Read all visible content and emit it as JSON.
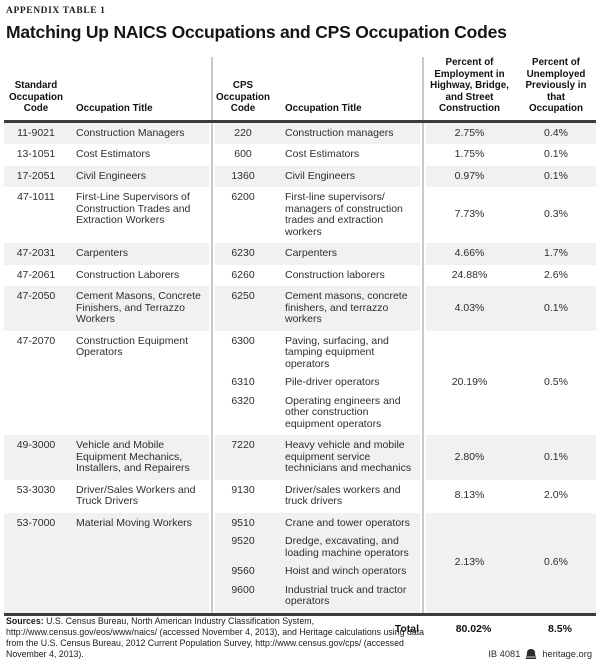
{
  "meta": {
    "kicker": "APPENDIX TABLE 1",
    "title": "Matching Up NAICS Occupations and CPS Occupation Codes"
  },
  "table": {
    "headers": [
      "Standard\nOccupation\nCode",
      "Occupation Title",
      "CPS\nOccupation\nCode",
      "Occupation Title",
      "Percent of\nEmployment in\nHighway, Bridge,\nand Street\nConstruction",
      "Percent of\nUnemployed\nPreviously in that\nOccupation"
    ],
    "rows": [
      {
        "soc": "11-9021",
        "title": "Construction Managers",
        "cps": [
          {
            "code": "220",
            "title": "Construction managers"
          }
        ],
        "emp": "2.75%",
        "unemp": "0.4%"
      },
      {
        "soc": "13-1051",
        "title": "Cost Estimators",
        "cps": [
          {
            "code": "600",
            "title": "Cost Estimators"
          }
        ],
        "emp": "1.75%",
        "unemp": "0.1%"
      },
      {
        "soc": "17-2051",
        "title": "Civil Engineers",
        "cps": [
          {
            "code": "1360",
            "title": "Civil Engineers"
          }
        ],
        "emp": "0.97%",
        "unemp": "0.1%"
      },
      {
        "soc": "47-1011",
        "title": "First-Line Supervisors of Construction Trades and Extraction Workers",
        "cps": [
          {
            "code": "6200",
            "title": "First-line supervisors/ managers of construction trades and extraction workers"
          }
        ],
        "emp": "7.73%",
        "unemp": "0.3%"
      },
      {
        "soc": "47-2031",
        "title": "Carpenters",
        "cps": [
          {
            "code": "6230",
            "title": "Carpenters"
          }
        ],
        "emp": "4.66%",
        "unemp": "1.7%"
      },
      {
        "soc": "47-2061",
        "title": "Construction Laborers",
        "cps": [
          {
            "code": "6260",
            "title": "Construction laborers"
          }
        ],
        "emp": "24.88%",
        "unemp": "2.6%"
      },
      {
        "soc": "47-2050",
        "title": "Cement Masons, Concrete Finishers, and Terrazzo Workers",
        "cps": [
          {
            "code": "6250",
            "title": "Cement masons, concrete finishers, and terrazzo workers"
          }
        ],
        "emp": "4.03%",
        "unemp": "0.1%"
      },
      {
        "soc": "47-2070",
        "title": "Construction Equipment Operators",
        "cps": [
          {
            "code": "6300",
            "title": "Paving, surfacing, and tamping equipment operators"
          },
          {
            "code": "6310",
            "title": "Pile-driver operators"
          },
          {
            "code": "6320",
            "title": "Operating engineers and other construction equipment operators"
          }
        ],
        "emp": "20.19%",
        "unemp": "0.5%"
      },
      {
        "soc": "49-3000",
        "title": "Vehicle and Mobile Equipment Mechanics, Installers, and Repairers",
        "cps": [
          {
            "code": "7220",
            "title": "Heavy vehicle and mobile equipment service technicians and mechanics"
          }
        ],
        "emp": "2.80%",
        "unemp": "0.1%"
      },
      {
        "soc": "53-3030",
        "title": "Driver/Sales Workers and Truck Drivers",
        "cps": [
          {
            "code": "9130",
            "title": "Driver/sales workers and truck drivers"
          }
        ],
        "emp": "8.13%",
        "unemp": "2.0%"
      },
      {
        "soc": "53-7000",
        "title": "Material Moving Workers",
        "cps": [
          {
            "code": "9510",
            "title": "Crane and tower operators"
          },
          {
            "code": "9520",
            "title": "Dredge, excavating, and loading machine operators"
          },
          {
            "code": "9560",
            "title": "Hoist and winch operators"
          },
          {
            "code": "9600",
            "title": "Industrial truck and tractor operators"
          }
        ],
        "emp": "2.13%",
        "unemp": "0.6%"
      }
    ],
    "total": {
      "label": "Total",
      "emp": "80.02%",
      "unemp": "8.5%"
    }
  },
  "footer": {
    "sources_label": "Sources:",
    "sources_text": " U.S. Census Bureau, North American Industry Classification System, http://www.census.gov/eos/www/naics/ (accessed November 4, 2013), and Heritage calculations using data from the U.S. Census Bureau, 2012 Current Population Survey, http://www.census.gov/cps/ (accessed November 4, 2013).",
    "doc_id": "IB 4081",
    "site": "heritage.org"
  },
  "colors": {
    "stripe": "#f1f1f2",
    "divider": "#c9c9c9",
    "rule": "#3c3c3c",
    "text": "#2e2e2e"
  }
}
